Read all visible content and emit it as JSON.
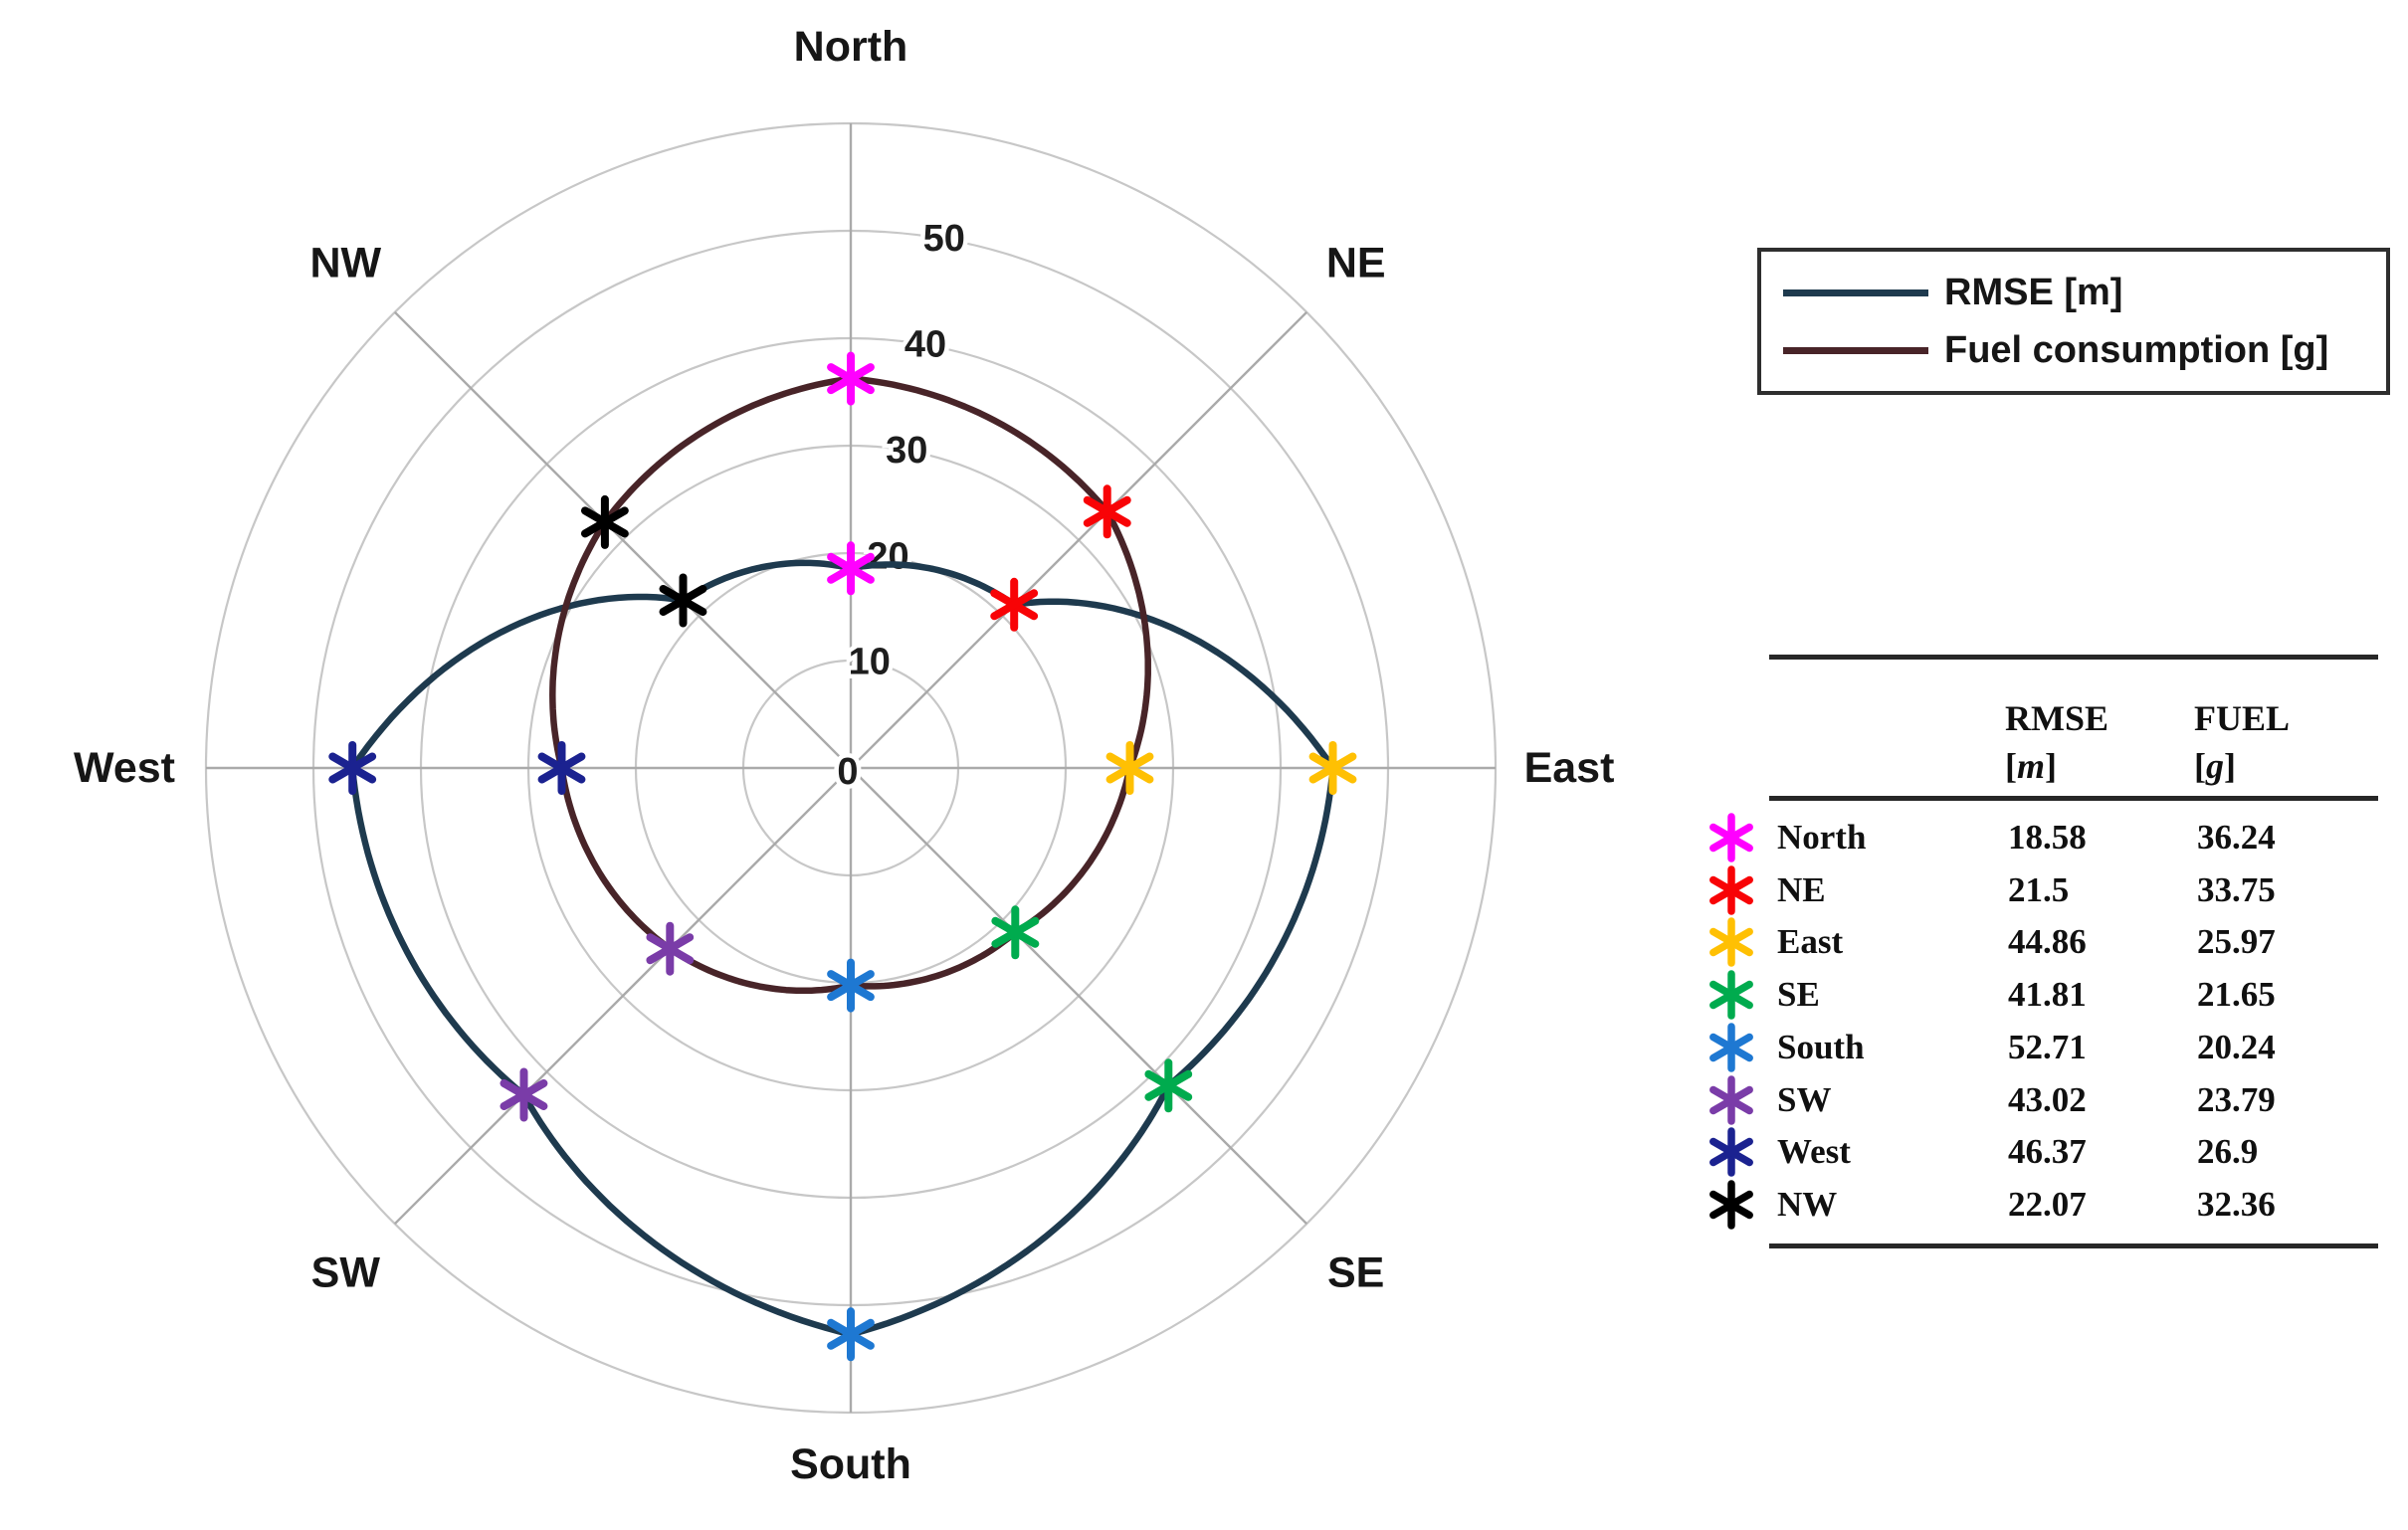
{
  "chart_data": {
    "type": "polar-line",
    "title": "",
    "categories": [
      "North",
      "NE",
      "East",
      "SE",
      "South",
      "SW",
      "West",
      "NW"
    ],
    "angles_deg": [
      90,
      45,
      0,
      315,
      270,
      225,
      180,
      135
    ],
    "series": [
      {
        "name": "RMSE [m]",
        "color": "#1E3A4E",
        "values": [
          18.58,
          21.5,
          44.86,
          41.81,
          52.71,
          43.02,
          46.37,
          22.07
        ]
      },
      {
        "name": "Fuel consumption [g]",
        "color": "#482428",
        "values": [
          36.24,
          33.75,
          25.97,
          21.65,
          20.24,
          23.79,
          26.9,
          32.36
        ]
      }
    ],
    "marker_style": "asterisk",
    "marker_colors": [
      "#FF00FF",
      "#F80306",
      "#FFC003",
      "#00AB4E",
      "#1E78D2",
      "#7A3CA8",
      "#1B2290",
      "#000000"
    ],
    "radial_ticks": [
      0,
      10,
      20,
      30,
      40,
      50
    ],
    "radial_max": 60,
    "grid": true,
    "legend_position": "top-right"
  },
  "legend": {
    "items": [
      {
        "label": "RMSE [m]",
        "color": "#1E3A4E"
      },
      {
        "label": "Fuel consumption [g]",
        "color": "#482428"
      }
    ]
  },
  "table": {
    "headers": [
      {
        "title": "RMSE",
        "bracket_open": "[",
        "unit": "m",
        "bracket_close": "]"
      },
      {
        "title": "FUEL",
        "bracket_open": "[",
        "unit": "g",
        "bracket_close": "]"
      }
    ],
    "rows": [
      {
        "direction": "North",
        "marker_color": "#FF00FF",
        "rmse": "18.58",
        "fuel": "36.24"
      },
      {
        "direction": "NE",
        "marker_color": "#F80306",
        "rmse": "21.5",
        "fuel": "33.75"
      },
      {
        "direction": "East",
        "marker_color": "#FFC003",
        "rmse": "44.86",
        "fuel": "25.97"
      },
      {
        "direction": "SE",
        "marker_color": "#00AB4E",
        "rmse": "41.81",
        "fuel": "21.65"
      },
      {
        "direction": "South",
        "marker_color": "#1E78D2",
        "rmse": "52.71",
        "fuel": "20.24"
      },
      {
        "direction": "SW",
        "marker_color": "#7A3CA8",
        "rmse": "43.02",
        "fuel": "23.79"
      },
      {
        "direction": "West",
        "marker_color": "#1B2290",
        "rmse": "46.37",
        "fuel": "26.9"
      },
      {
        "direction": "NW",
        "marker_color": "#000000",
        "rmse": "22.07",
        "fuel": "32.36"
      }
    ]
  }
}
